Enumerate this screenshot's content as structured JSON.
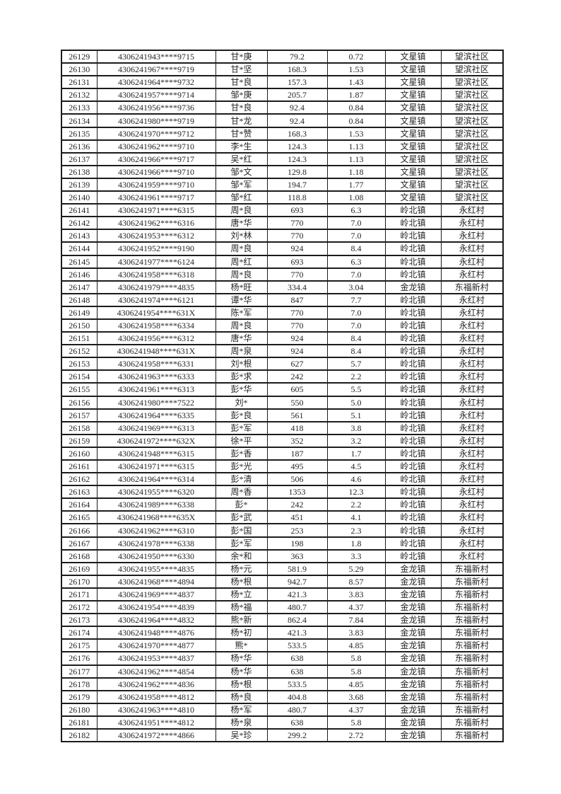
{
  "page": {
    "background_color": "#ffffff"
  },
  "table": {
    "border_color": "#1c1c1c",
    "text_color": "#262626",
    "column_semantics": [
      "serial-number",
      "masked-id-number",
      "person-name",
      "value-primary",
      "value-secondary",
      "town",
      "village"
    ],
    "rows": [
      [
        "26129",
        "4306241943****9715",
        "甘*庚",
        "79.2",
        "0.72",
        "文星镇",
        "望滨社区"
      ],
      [
        "26130",
        "4306241967****9719",
        "甘*坚",
        "168.3",
        "1.53",
        "文星镇",
        "望滨社区"
      ],
      [
        "26131",
        "4306241964****9732",
        "甘*良",
        "157.3",
        "1.43",
        "文星镇",
        "望滨社区"
      ],
      [
        "26132",
        "4306241957****9714",
        "邹*庚",
        "205.7",
        "1.87",
        "文星镇",
        "望滨社区"
      ],
      [
        "26133",
        "4306241956****9736",
        "甘*良",
        "92.4",
        "0.84",
        "文星镇",
        "望滨社区"
      ],
      [
        "26134",
        "4306241980****9719",
        "甘*龙",
        "92.4",
        "0.84",
        "文星镇",
        "望滨社区"
      ],
      [
        "26135",
        "4306241970****9712",
        "甘*赞",
        "168.3",
        "1.53",
        "文星镇",
        "望滨社区"
      ],
      [
        "26136",
        "4306241962****9710",
        "李*生",
        "124.3",
        "1.13",
        "文星镇",
        "望滨社区"
      ],
      [
        "26137",
        "4306241966****9717",
        "吴*红",
        "124.3",
        "1.13",
        "文星镇",
        "望滨社区"
      ],
      [
        "26138",
        "4306241966****9710",
        "邹*文",
        "129.8",
        "1.18",
        "文星镇",
        "望滨社区"
      ],
      [
        "26139",
        "4306241959****9710",
        "邹*军",
        "194.7",
        "1.77",
        "文星镇",
        "望滨社区"
      ],
      [
        "26140",
        "4306241961****9717",
        "邹*红",
        "118.8",
        "1.08",
        "文星镇",
        "望滨社区"
      ],
      [
        "26141",
        "4306241971****6315",
        "周*良",
        "693",
        "6.3",
        "岭北镇",
        "永红村"
      ],
      [
        "26142",
        "4306241962****6316",
        "唐*华",
        "770",
        "7.0",
        "岭北镇",
        "永红村"
      ],
      [
        "26143",
        "4306241953****6312",
        "刘*林",
        "770",
        "7.0",
        "岭北镇",
        "永红村"
      ],
      [
        "26144",
        "4306241952****9190",
        "周*良",
        "924",
        "8.4",
        "岭北镇",
        "永红村"
      ],
      [
        "26145",
        "4306241977****6124",
        "周*红",
        "693",
        "6.3",
        "岭北镇",
        "永红村"
      ],
      [
        "26146",
        "4306241958****6318",
        "周*良",
        "770",
        "7.0",
        "岭北镇",
        "永红村"
      ],
      [
        "26147",
        "4306241979****4835",
        "杨*旺",
        "334.4",
        "3.04",
        "金龙镇",
        "东福新村"
      ],
      [
        "26148",
        "4306241974****6121",
        "谭*华",
        "847",
        "7.7",
        "岭北镇",
        "永红村"
      ],
      [
        "26149",
        "4306241954****631X",
        "陈*军",
        "770",
        "7.0",
        "岭北镇",
        "永红村"
      ],
      [
        "26150",
        "4306241958****6334",
        "周*良",
        "770",
        "7.0",
        "岭北镇",
        "永红村"
      ],
      [
        "26151",
        "4306241956****6312",
        "唐*华",
        "924",
        "8.4",
        "岭北镇",
        "永红村"
      ],
      [
        "26152",
        "4306241948****631X",
        "周*泉",
        "924",
        "8.4",
        "岭北镇",
        "永红村"
      ],
      [
        "26153",
        "4306241958****6331",
        "刘*根",
        "627",
        "5.7",
        "岭北镇",
        "永红村"
      ],
      [
        "26154",
        "4306241963****6333",
        "彭*求",
        "242",
        "2.2",
        "岭北镇",
        "永红村"
      ],
      [
        "26155",
        "4306241961****6313",
        "彭*华",
        "605",
        "5.5",
        "岭北镇",
        "永红村"
      ],
      [
        "26156",
        "4306241980****7522",
        "刘*",
        "550",
        "5.0",
        "岭北镇",
        "永红村"
      ],
      [
        "26157",
        "4306241964****6335",
        "彭*良",
        "561",
        "5.1",
        "岭北镇",
        "永红村"
      ],
      [
        "26158",
        "4306241969****6313",
        "彭*军",
        "418",
        "3.8",
        "岭北镇",
        "永红村"
      ],
      [
        "26159",
        "4306241972****632X",
        "徐*平",
        "352",
        "3.2",
        "岭北镇",
        "永红村"
      ],
      [
        "26160",
        "4306241948****6315",
        "彭*香",
        "187",
        "1.7",
        "岭北镇",
        "永红村"
      ],
      [
        "26161",
        "4306241971****6315",
        "彭*光",
        "495",
        "4.5",
        "岭北镇",
        "永红村"
      ],
      [
        "26162",
        "4306241964****6314",
        "彭*清",
        "506",
        "4.6",
        "岭北镇",
        "永红村"
      ],
      [
        "26163",
        "4306241955****6320",
        "周*香",
        "1353",
        "12.3",
        "岭北镇",
        "永红村"
      ],
      [
        "26164",
        "4306241989****6338",
        "彭*",
        "242",
        "2.2",
        "岭北镇",
        "永红村"
      ],
      [
        "26165",
        "4306241968****635X",
        "彭*武",
        "451",
        "4.1",
        "岭北镇",
        "永红村"
      ],
      [
        "26166",
        "4306241962****6310",
        "彭*国",
        "253",
        "2.3",
        "岭北镇",
        "永红村"
      ],
      [
        "26167",
        "4306241978****6338",
        "彭*军",
        "198",
        "1.8",
        "岭北镇",
        "永红村"
      ],
      [
        "26168",
        "4306241950****6330",
        "余*和",
        "363",
        "3.3",
        "岭北镇",
        "永红村"
      ],
      [
        "26169",
        "4306241955****4835",
        "杨*元",
        "581.9",
        "5.29",
        "金龙镇",
        "东福新村"
      ],
      [
        "26170",
        "4306241968****4894",
        "杨*根",
        "942.7",
        "8.57",
        "金龙镇",
        "东福新村"
      ],
      [
        "26171",
        "4306241969****4837",
        "杨*立",
        "421.3",
        "3.83",
        "金龙镇",
        "东福新村"
      ],
      [
        "26172",
        "4306241954****4839",
        "杨*福",
        "480.7",
        "4.37",
        "金龙镇",
        "东福新村"
      ],
      [
        "26173",
        "4306241964****4832",
        "熊*新",
        "862.4",
        "7.84",
        "金龙镇",
        "东福新村"
      ],
      [
        "26174",
        "4306241948****4876",
        "杨*初",
        "421.3",
        "3.83",
        "金龙镇",
        "东福新村"
      ],
      [
        "26175",
        "4306241970****4877",
        "熊*",
        "533.5",
        "4.85",
        "金龙镇",
        "东福新村"
      ],
      [
        "26176",
        "4306241953****4837",
        "杨*华",
        "638",
        "5.8",
        "金龙镇",
        "东福新村"
      ],
      [
        "26177",
        "4306241962****4854",
        "杨*华",
        "638",
        "5.8",
        "金龙镇",
        "东福新村"
      ],
      [
        "26178",
        "4306241962****4836",
        "杨*根",
        "533.5",
        "4.85",
        "金龙镇",
        "东福新村"
      ],
      [
        "26179",
        "4306241958****4812",
        "杨*良",
        "404.8",
        "3.68",
        "金龙镇",
        "东福新村"
      ],
      [
        "26180",
        "4306241963****4810",
        "杨*军",
        "480.7",
        "4.37",
        "金龙镇",
        "东福新村"
      ],
      [
        "26181",
        "4306241951****4812",
        "杨*泉",
        "638",
        "5.8",
        "金龙镇",
        "东福新村"
      ],
      [
        "26182",
        "4306241972****4866",
        "吴*珍",
        "299.2",
        "2.72",
        "金龙镇",
        "东福新村"
      ]
    ]
  }
}
